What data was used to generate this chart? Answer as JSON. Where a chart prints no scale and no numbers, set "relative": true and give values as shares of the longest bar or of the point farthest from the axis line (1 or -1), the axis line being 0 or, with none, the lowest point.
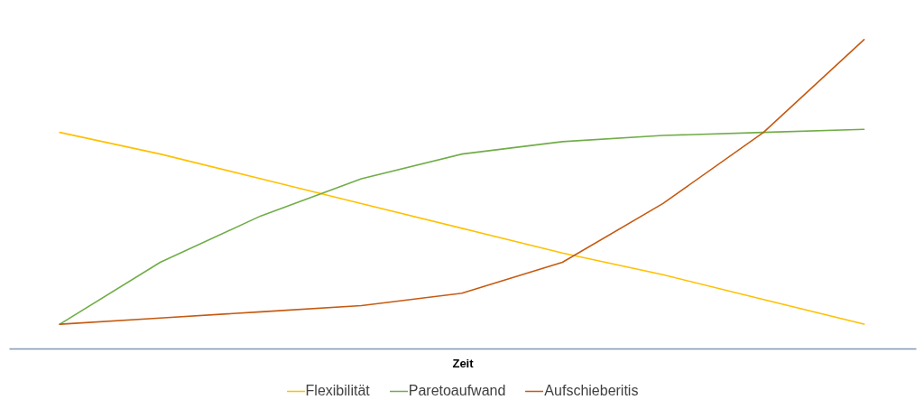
{
  "chart_data": {
    "type": "line",
    "xlabel": "Zeit",
    "categories": [
      null,
      null,
      null,
      null,
      null,
      null,
      null,
      null,
      null
    ],
    "series": [
      {
        "name": "Flexibilität",
        "color": "#ffc000",
        "values": [
          0.7,
          0.63,
          0.55,
          0.47,
          0.39,
          0.31,
          0.24,
          0.16,
          0.08
        ]
      },
      {
        "name": "Paretoaufwand",
        "color": "#70ad47",
        "values": [
          0.08,
          0.28,
          0.43,
          0.55,
          0.63,
          0.67,
          0.69,
          0.7,
          0.71
        ]
      },
      {
        "name": "Aufschieberitis",
        "color": "#c55a11",
        "values": [
          0.08,
          0.1,
          0.12,
          0.14,
          0.18,
          0.28,
          0.47,
          0.7,
          1
        ]
      }
    ],
    "relative": true,
    "grid": false,
    "legend": "bottom"
  }
}
